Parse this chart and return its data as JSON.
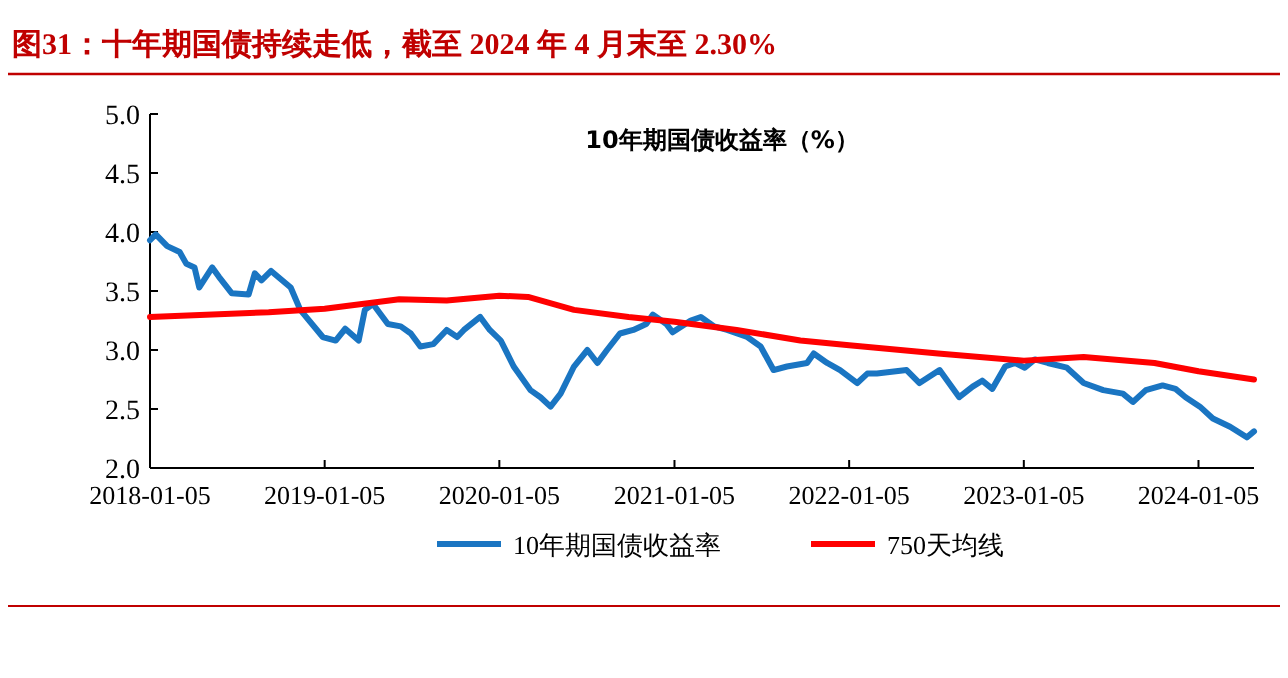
{
  "chart_data": {
    "type": "line",
    "title": "图31：十年期国债持续走低，截至 2024 年 4 月末至 2.30%",
    "subtitle": "10年期国债收益率（%）",
    "xlim": [
      "2018-01-05",
      "2024-04-30"
    ],
    "xticks": [
      "2018-01-05",
      "2019-01-05",
      "2020-01-05",
      "2021-01-05",
      "2022-01-05",
      "2023-01-05",
      "2024-01-05"
    ],
    "ylim": [
      2.0,
      5.0
    ],
    "yticks": [
      {
        "value": 2.0,
        "label": "2.0"
      },
      {
        "value": 2.5,
        "label": "2.5"
      },
      {
        "value": 3.0,
        "label": "3.0"
      },
      {
        "value": 3.5,
        "label": "3.5"
      },
      {
        "value": 4.0,
        "label": "4.0"
      },
      {
        "value": 4.5,
        "label": "4.5"
      },
      {
        "value": 5.0,
        "label": "5.0"
      }
    ],
    "legend": "bottom",
    "series": [
      {
        "name": "10年期国债收益率",
        "color": "#1a75c2",
        "x": [
          "2018-01-05",
          "2018-01-17",
          "2018-02-10",
          "2018-03-08",
          "2018-03-22",
          "2018-04-08",
          "2018-04-18",
          "2018-05-15",
          "2018-05-29",
          "2018-06-25",
          "2018-07-30",
          "2018-08-12",
          "2018-08-26",
          "2018-09-15",
          "2018-10-26",
          "2018-11-15",
          "2019-01-01",
          "2019-01-28",
          "2019-02-17",
          "2019-03-17",
          "2019-03-30",
          "2019-04-16",
          "2019-05-17",
          "2019-06-13",
          "2019-07-04",
          "2019-07-24",
          "2019-08-20",
          "2019-09-17",
          "2019-10-09",
          "2019-10-23",
          "2019-11-26",
          "2019-12-16",
          "2020-01-08",
          "2020-02-04",
          "2020-03-10",
          "2020-03-31",
          "2020-04-21",
          "2020-05-12",
          "2020-06-09",
          "2020-07-07",
          "2020-07-28",
          "2020-08-17",
          "2020-09-13",
          "2020-10-11",
          "2020-11-07",
          "2020-11-21",
          "2020-12-19",
          "2021-01-01",
          "2021-02-08",
          "2021-03-01",
          "2021-03-29",
          "2021-04-25",
          "2021-06-06",
          "2021-07-04",
          "2021-07-31",
          "2021-08-28",
          "2021-10-09",
          "2021-10-23",
          "2021-11-20",
          "2021-12-17",
          "2022-01-22",
          "2022-02-12",
          "2022-03-04",
          "2022-05-05",
          "2022-06-01",
          "2022-07-13",
          "2022-08-23",
          "2022-09-20",
          "2022-10-10",
          "2022-10-31",
          "2022-11-27",
          "2022-12-18",
          "2023-01-07",
          "2023-01-28",
          "2023-02-24",
          "2023-04-05",
          "2023-05-10",
          "2023-06-20",
          "2023-07-31",
          "2023-08-21",
          "2023-09-17",
          "2023-10-22",
          "2023-11-18",
          "2023-12-09",
          "2024-01-08",
          "2024-02-04",
          "2024-03-11",
          "2024-04-15",
          "2024-04-30"
        ],
        "values": [
          3.93,
          3.98,
          3.88,
          3.83,
          3.73,
          3.7,
          3.53,
          3.7,
          3.62,
          3.48,
          3.47,
          3.65,
          3.59,
          3.67,
          3.53,
          3.34,
          3.11,
          3.08,
          3.18,
          3.08,
          3.34,
          3.39,
          3.22,
          3.2,
          3.14,
          3.03,
          3.05,
          3.17,
          3.11,
          3.17,
          3.28,
          3.17,
          3.08,
          2.86,
          2.66,
          2.6,
          2.52,
          2.63,
          2.86,
          3.0,
          2.89,
          3.0,
          3.14,
          3.17,
          3.22,
          3.3,
          3.22,
          3.15,
          3.25,
          3.28,
          3.2,
          3.17,
          3.11,
          3.03,
          2.83,
          2.86,
          2.89,
          2.97,
          2.89,
          2.83,
          2.72,
          2.8,
          2.8,
          2.83,
          2.72,
          2.83,
          2.6,
          2.69,
          2.74,
          2.67,
          2.86,
          2.89,
          2.85,
          2.92,
          2.89,
          2.85,
          2.72,
          2.66,
          2.63,
          2.56,
          2.66,
          2.7,
          2.67,
          2.6,
          2.52,
          2.42,
          2.35,
          2.26,
          2.31
        ]
      },
      {
        "name": "750天均线",
        "color": "#ff0000",
        "x": [
          "2018-01-05",
          "2018-09-10",
          "2019-01-05",
          "2019-06-10",
          "2019-09-17",
          "2020-01-05",
          "2020-03-05",
          "2020-06-09",
          "2020-10-01",
          "2021-01-05",
          "2021-05-15",
          "2021-09-25",
          "2022-01-05",
          "2022-07-10",
          "2023-01-05",
          "2023-05-10",
          "2023-10-05",
          "2024-01-05",
          "2024-04-30"
        ],
        "values": [
          3.28,
          3.32,
          3.35,
          3.43,
          3.42,
          3.46,
          3.45,
          3.34,
          3.28,
          3.24,
          3.17,
          3.08,
          3.04,
          2.97,
          2.91,
          2.94,
          2.89,
          2.82,
          2.75
        ]
      }
    ]
  }
}
